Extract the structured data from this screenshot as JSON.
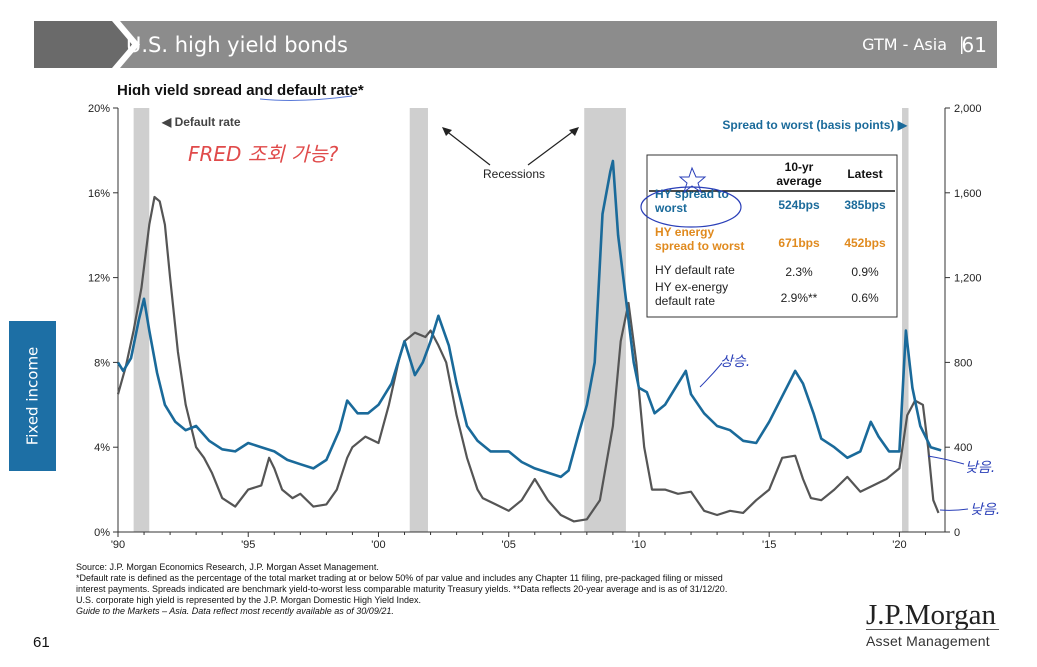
{
  "header": {
    "title": "U.S. high yield bonds",
    "section": "GTM - Asia",
    "separator": "|",
    "page": "61"
  },
  "side_tab": {
    "label": "Fixed income"
  },
  "chart_title": "High yield spread and default rate*",
  "chart_data": {
    "type": "line",
    "title": "High yield spread and default rate*",
    "x_ticks": [
      "'90",
      "'95",
      "'00",
      "'05",
      "'10",
      "'15",
      "'20"
    ],
    "xlim": [
      1990,
      2021.75
    ],
    "y_left": {
      "ticks": [
        "0%",
        "4%",
        "8%",
        "12%",
        "16%",
        "20%"
      ],
      "ylim": [
        0,
        20
      ],
      "unit": "%"
    },
    "y_right": {
      "ticks": [
        "0",
        "400",
        "800",
        "1,200",
        "1,600",
        "2,000"
      ],
      "ylim": [
        0,
        2000
      ],
      "unit": "basis points"
    },
    "recessions": [
      [
        1990.6,
        1991.2
      ],
      [
        2001.2,
        2001.9
      ],
      [
        2007.9,
        2009.5
      ],
      [
        2020.1,
        2020.35
      ]
    ],
    "series": [
      {
        "name": "Default rate",
        "axis": "left",
        "color": "#555555",
        "x": [
          1990.0,
          1990.3,
          1990.6,
          1990.9,
          1991.2,
          1991.4,
          1991.6,
          1991.8,
          1992.0,
          1992.3,
          1992.6,
          1993.0,
          1993.3,
          1993.6,
          1994.0,
          1994.5,
          1995.0,
          1995.5,
          1995.8,
          1996.0,
          1996.3,
          1996.7,
          1997.0,
          1997.5,
          1998.0,
          1998.4,
          1998.8,
          1999.0,
          1999.5,
          2000.0,
          2000.4,
          2000.8,
          2001.0,
          2001.4,
          2001.8,
          2002.0,
          2002.3,
          2002.6,
          2003.0,
          2003.4,
          2003.8,
          2004.0,
          2004.5,
          2005.0,
          2005.5,
          2006.0,
          2006.5,
          2007.0,
          2007.5,
          2008.0,
          2008.5,
          2009.0,
          2009.3,
          2009.6,
          2009.9,
          2010.2,
          2010.5,
          2011.0,
          2011.5,
          2012.0,
          2012.5,
          2013.0,
          2013.5,
          2014.0,
          2014.5,
          2015.0,
          2015.5,
          2016.0,
          2016.3,
          2016.6,
          2017.0,
          2017.5,
          2018.0,
          2018.5,
          2019.0,
          2019.5,
          2020.0,
          2020.3,
          2020.6,
          2020.9,
          2021.1,
          2021.3,
          2021.5
        ],
        "y": [
          6.5,
          7.8,
          9.5,
          11.5,
          14.5,
          15.8,
          15.6,
          14.5,
          12.0,
          8.5,
          6.0,
          4.0,
          3.5,
          2.8,
          1.6,
          1.2,
          2.0,
          2.2,
          3.5,
          3.0,
          2.0,
          1.6,
          1.8,
          1.2,
          1.3,
          2.0,
          3.5,
          4.0,
          4.5,
          4.2,
          6.0,
          8.2,
          9.0,
          9.4,
          9.2,
          9.5,
          8.8,
          8.0,
          5.5,
          3.5,
          2.0,
          1.6,
          1.3,
          1.0,
          1.5,
          2.5,
          1.5,
          0.8,
          0.5,
          0.6,
          1.5,
          5.0,
          9.0,
          10.8,
          8.0,
          4.0,
          2.0,
          2.0,
          1.8,
          1.9,
          1.0,
          0.8,
          1.0,
          0.9,
          1.5,
          2.0,
          3.5,
          3.6,
          2.5,
          1.6,
          1.5,
          2.0,
          2.6,
          1.9,
          2.2,
          2.5,
          3.0,
          5.5,
          6.2,
          6.0,
          4.0,
          1.5,
          0.9
        ]
      },
      {
        "name": "Spread to worst (basis points)",
        "axis": "right",
        "color": "#1a6a9a",
        "x": [
          1990.0,
          1990.2,
          1990.5,
          1990.8,
          1991.0,
          1991.2,
          1991.5,
          1991.8,
          1992.2,
          1992.6,
          1993.0,
          1993.5,
          1994.0,
          1994.5,
          1995.0,
          1995.5,
          1996.0,
          1996.5,
          1997.0,
          1997.5,
          1998.0,
          1998.5,
          1998.8,
          1999.2,
          1999.6,
          2000.0,
          2000.5,
          2000.8,
          2001.0,
          2001.4,
          2001.7,
          2002.0,
          2002.3,
          2002.7,
          2003.0,
          2003.4,
          2003.8,
          2004.3,
          2005.0,
          2005.5,
          2006.0,
          2006.5,
          2007.0,
          2007.3,
          2007.7,
          2008.0,
          2008.3,
          2008.6,
          2008.9,
          2009.0,
          2009.2,
          2009.5,
          2009.8,
          2010.0,
          2010.3,
          2010.6,
          2011.0,
          2011.5,
          2011.8,
          2012.0,
          2012.5,
          2013.0,
          2013.5,
          2014.0,
          2014.5,
          2015.0,
          2015.5,
          2016.0,
          2016.3,
          2016.7,
          2017.0,
          2017.5,
          2018.0,
          2018.5,
          2018.9,
          2019.2,
          2019.6,
          2020.0,
          2020.25,
          2020.5,
          2020.8,
          2021.2,
          2021.6
        ],
        "y": [
          800,
          760,
          820,
          1000,
          1100,
          950,
          750,
          600,
          520,
          480,
          500,
          430,
          390,
          380,
          420,
          400,
          380,
          340,
          320,
          300,
          340,
          480,
          620,
          560,
          560,
          600,
          700,
          820,
          900,
          740,
          800,
          900,
          1020,
          880,
          700,
          500,
          430,
          380,
          380,
          330,
          300,
          280,
          260,
          290,
          470,
          600,
          800,
          1500,
          1700,
          1750,
          1400,
          1100,
          800,
          680,
          660,
          560,
          600,
          700,
          760,
          650,
          560,
          500,
          480,
          430,
          420,
          520,
          640,
          760,
          700,
          560,
          440,
          400,
          350,
          380,
          520,
          450,
          380,
          380,
          950,
          680,
          500,
          400,
          385
        ]
      }
    ],
    "annotations": {
      "default_rate_label": "◀ Default rate",
      "spread_label": "Spread to worst (basis points) ▶",
      "recessions": "Recessions"
    },
    "table": {
      "headers": [
        "",
        "10-yr average",
        "Latest"
      ],
      "rows": [
        {
          "label": "HY spread to worst",
          "avg": "524bps",
          "latest": "385bps",
          "color": "#1a6a9a"
        },
        {
          "label": "HY energy spread to worst",
          "avg": "671bps",
          "latest": "452bps",
          "color": "#e08a1e"
        },
        {
          "label": "HY default rate",
          "avg": "2.3%",
          "latest": "0.9%",
          "color": "#222222"
        },
        {
          "label": "HY ex-energy default rate",
          "avg": "2.9%**",
          "latest": "0.6%",
          "color": "#222222"
        }
      ]
    }
  },
  "handwriting": {
    "note1": "FRED 조회 가능?",
    "note2": "상승.",
    "note3": "낮음.",
    "note4": "낮음."
  },
  "source_lines": [
    "Source: J.P. Morgan Economics Research, J.P. Morgan Asset Management.",
    "*Default rate is defined as the percentage of the total market trading at or below 50% of par value and includes any Chapter 11 filing, pre-packaged filing or missed",
    "interest payments. Spreads indicated are benchmark yield-to-worst less comparable maturity Treasury yields. **Data reflects 20-year average and is as of 31/12/20.",
    "U.S. corporate high yield is represented by the J.P. Morgan Domestic High Yield Index.",
    "Guide to the Markets – Asia. Data reflect most recently available as of 30/09/21."
  ],
  "footer": {
    "page_number": "61",
    "brand": "J.P.Morgan",
    "brand_sub": "Asset Management"
  }
}
